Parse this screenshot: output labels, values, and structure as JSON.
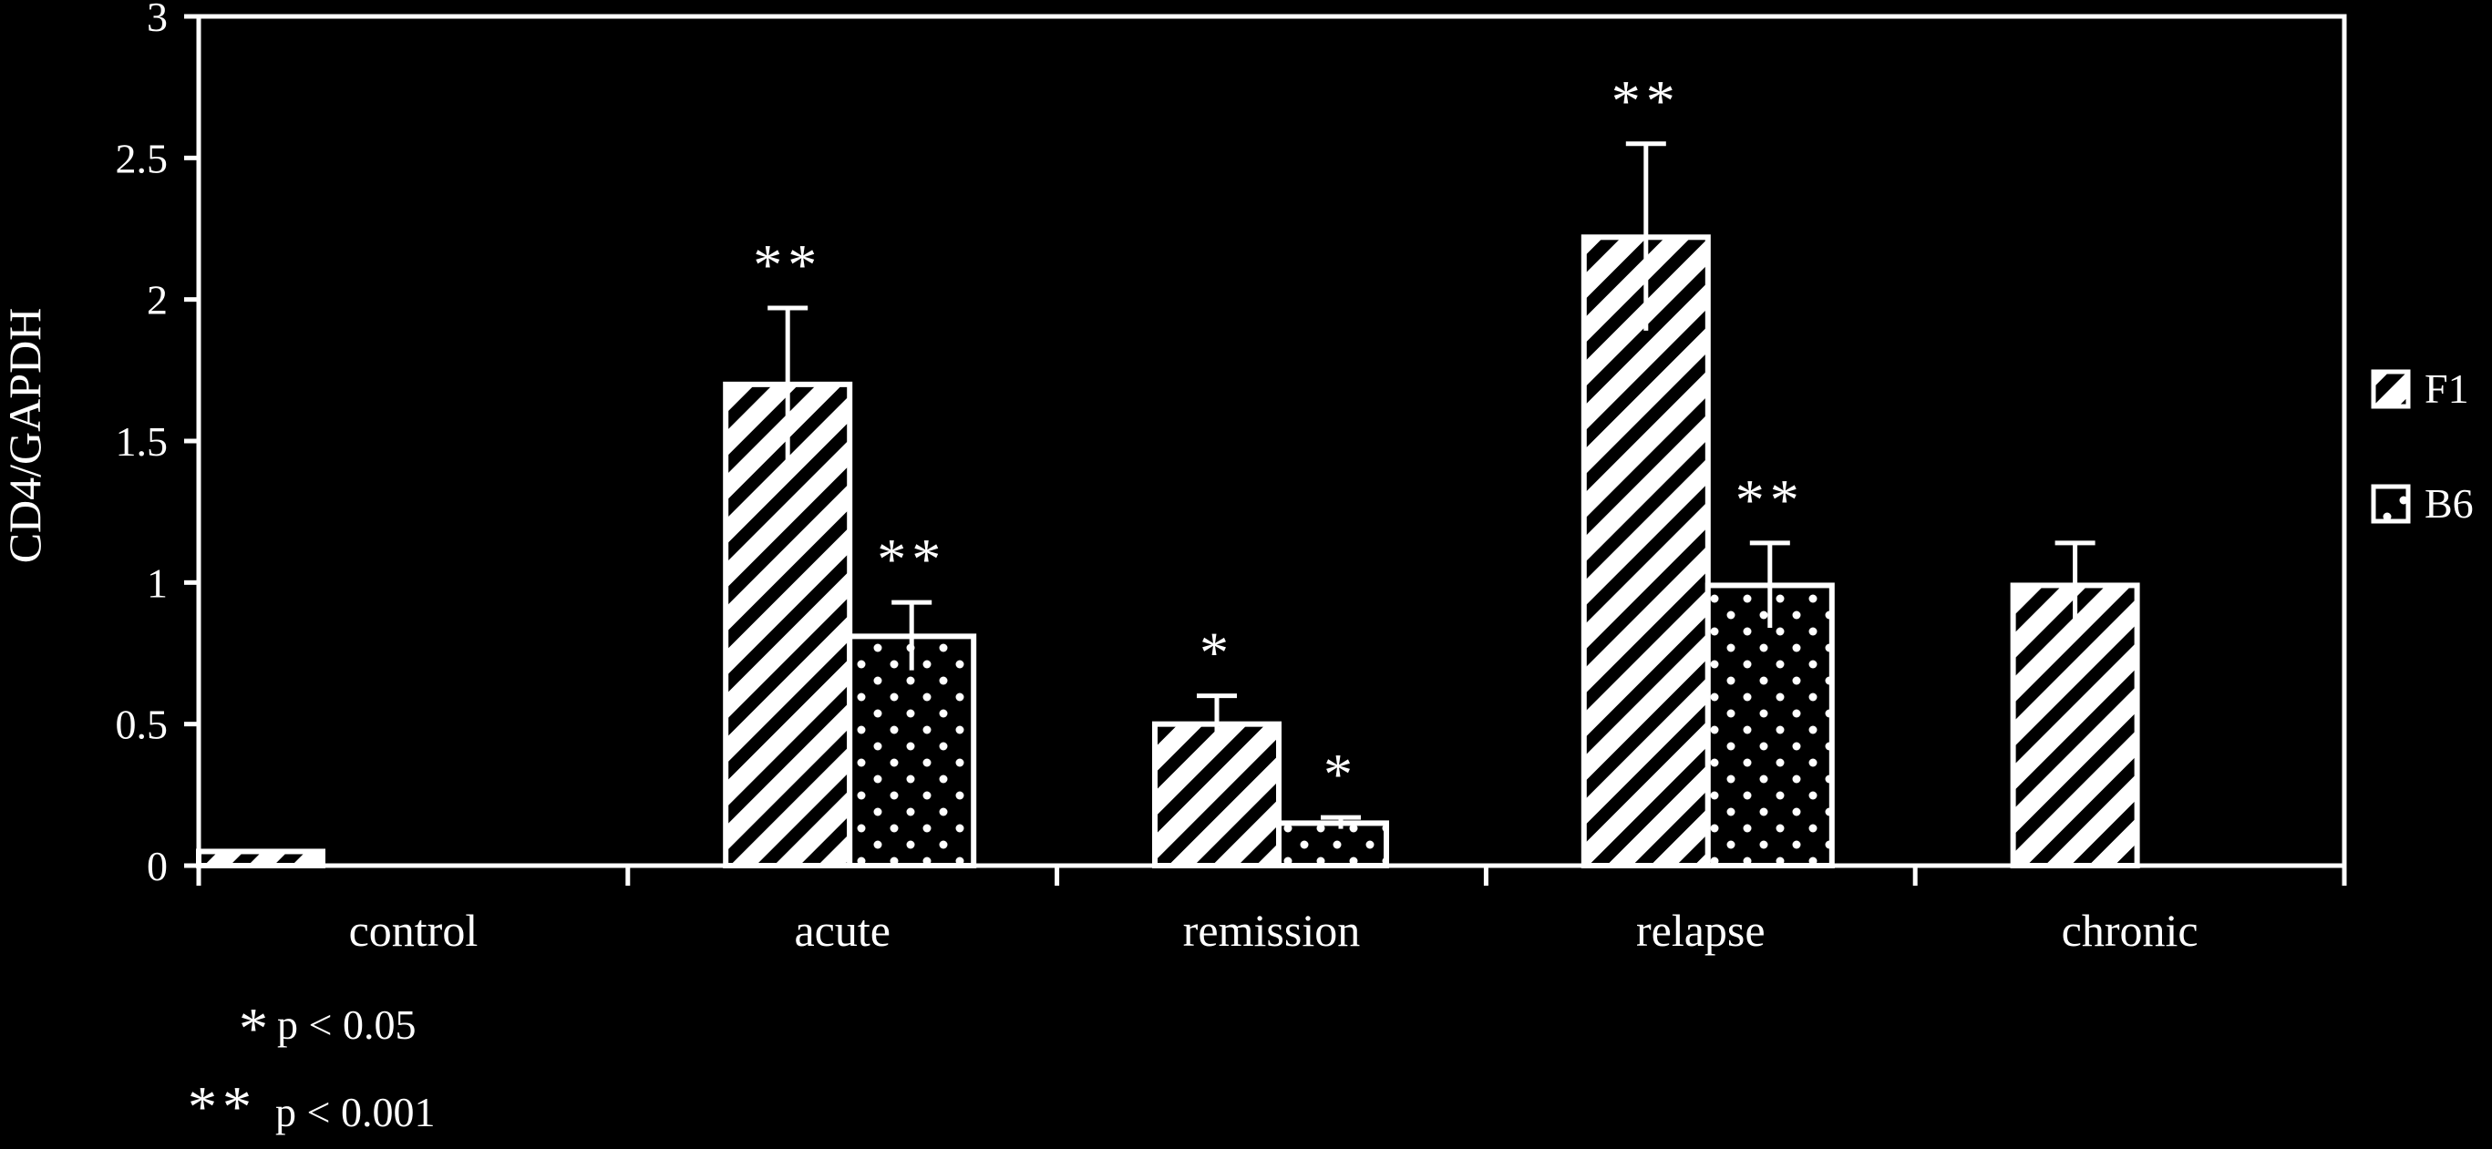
{
  "chart_data": {
    "type": "bar",
    "title": "",
    "xlabel": "",
    "ylabel": "CD4/GAPDH",
    "ylim": [
      0,
      3
    ],
    "yticks": [
      "0",
      "0.5",
      "1",
      "1.5",
      "2",
      "2.5",
      "3"
    ],
    "grid": false,
    "legend_position": "right",
    "categories": [
      "control",
      "acute",
      "remission",
      "relapse",
      "chronic"
    ],
    "series": [
      {
        "name": "F1",
        "pattern": "diagonal-hatch",
        "values": [
          0.05,
          1.7,
          0.5,
          2.22,
          0.99
        ],
        "errors": [
          0.0,
          0.27,
          0.1,
          0.33,
          0.15
        ],
        "significance": [
          "",
          "**",
          "*",
          "**",
          ""
        ]
      },
      {
        "name": "B6",
        "pattern": "dots",
        "values": [
          null,
          0.81,
          0.15,
          0.99,
          null
        ],
        "errors": [
          null,
          0.12,
          0.02,
          0.15,
          null
        ],
        "significance": [
          "",
          "**",
          "*",
          "**",
          ""
        ]
      }
    ],
    "annotations": [
      {
        "marker": "*",
        "text": "p < 0.05"
      },
      {
        "marker": "**",
        "text": "p < 0.001"
      }
    ]
  },
  "colors": {
    "background": "#000000",
    "foreground": "#ffffff"
  }
}
